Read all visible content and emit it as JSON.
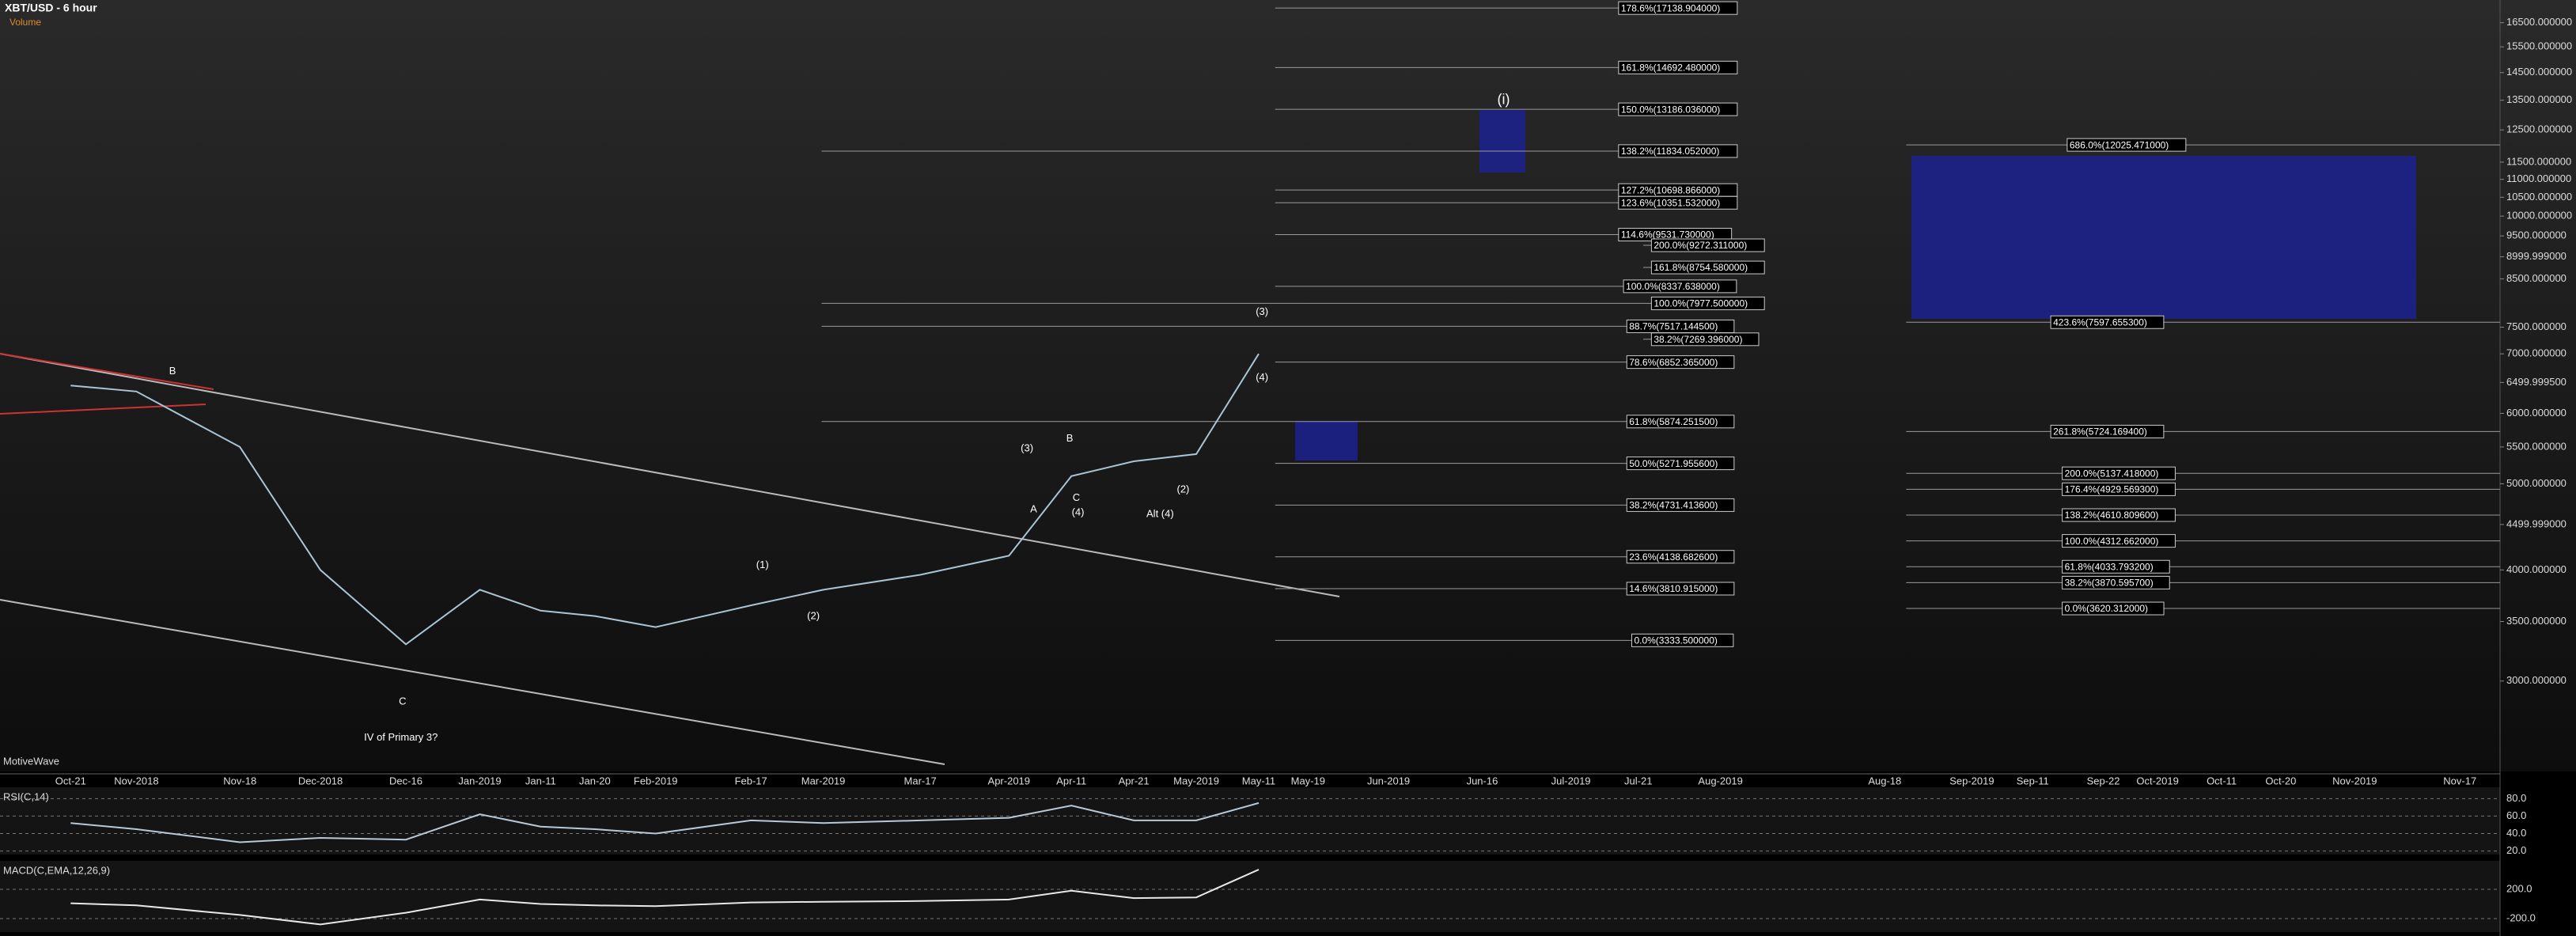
{
  "chart_data": {
    "type": "line",
    "title": "XBT/USD - 6 hour",
    "subtitle": "Volume",
    "watermark": "MotiveWave",
    "log_scale": true,
    "categories": [
      "Oct-21",
      "Nov-2018",
      "Nov-18",
      "Dec-2018",
      "Dec-16",
      "Jan-2019",
      "Jan-11",
      "Jan-20",
      "Feb-2019",
      "Feb-17",
      "Mar-2019",
      "Mar-17",
      "Apr-2019",
      "Apr-11",
      "Apr-21",
      "May-2019",
      "May-11",
      "May-19",
      "Jun-2019",
      "Jun-16",
      "Jul-2019",
      "Jul-21",
      "Aug-2019",
      "Aug-18",
      "Sep-2019",
      "Sep-11",
      "Sep-22",
      "Oct-2019",
      "Oct-11",
      "Oct-20",
      "Nov-2019",
      "Nov-17"
    ],
    "series": [
      {
        "name": "XBT/USD",
        "color": "#a9c4d4",
        "values": [
          6450,
          6350,
          5500,
          4000,
          3300,
          3800,
          3600,
          3550,
          3450,
          3650,
          3800,
          3950,
          4150,
          5100,
          5300,
          5400,
          7000,
          null,
          null,
          null,
          null,
          null,
          null,
          null,
          null,
          null,
          null,
          null,
          null,
          null,
          null,
          null
        ]
      }
    ],
    "ylim": [
      2374,
      17500
    ],
    "yticks": [
      {
        "value": 16500,
        "label": "16500.000000"
      },
      {
        "value": 15500,
        "label": "15500.000000"
      },
      {
        "value": 14500,
        "label": "14500.000000"
      },
      {
        "value": 13500,
        "label": "13500.000000"
      },
      {
        "value": 12500,
        "label": "12500.000000"
      },
      {
        "value": 11500,
        "label": "11500.000000"
      },
      {
        "value": 11000,
        "label": "11000.000000"
      },
      {
        "value": 10500,
        "label": "10500.000000"
      },
      {
        "value": 10000,
        "label": "10000.000000"
      },
      {
        "value": 9500,
        "label": "9500.000000"
      },
      {
        "value": 8999.999,
        "label": "8999.999000"
      },
      {
        "value": 8500,
        "label": "8500.000000"
      },
      {
        "value": 7500,
        "label": "7500.000000"
      },
      {
        "value": 7000,
        "label": "7000.000000"
      },
      {
        "value": 6499.9995,
        "label": "6499.999500"
      },
      {
        "value": 6000,
        "label": "6000.000000"
      },
      {
        "value": 5500,
        "label": "5500.000000"
      },
      {
        "value": 5000,
        "label": "5000.000000"
      },
      {
        "value": 4499.999,
        "label": "4499.999000"
      },
      {
        "value": 4000,
        "label": "4000.000000"
      },
      {
        "value": 3500,
        "label": "3500.000000"
      },
      {
        "value": 3000,
        "label": "3000.000000"
      }
    ],
    "fib_levels": [
      {
        "value": 17138.904,
        "label": "178.6%(17138.904000)"
      },
      {
        "value": 14692.48,
        "label": "161.8%(14692.480000)"
      },
      {
        "value": 13186.036,
        "label": "150.0%(13186.036000)"
      },
      {
        "value": 11834.052,
        "label": "138.2%(11834.052000)"
      },
      {
        "value": 10698.866,
        "label": "127.2%(10698.866000)"
      },
      {
        "value": 10351.532,
        "label": "123.6%(10351.532000)"
      },
      {
        "value": 9531.73,
        "label": "114.6%(9531.730000)"
      },
      {
        "value": 8337.638,
        "label": "100.0%(8337.638000)"
      },
      {
        "value": 7977.5,
        "label": "100.0%(7977.500000)"
      },
      {
        "value": 7517.1445,
        "label": "88.7%(7517.144500)"
      },
      {
        "value": 6852.365,
        "label": "78.6%(6852.365000)"
      },
      {
        "value": 5874.2515,
        "label": "61.8%(5874.251500)"
      },
      {
        "value": 5271.9556,
        "label": "50.0%(5271.955600)"
      },
      {
        "value": 4731.4136,
        "label": "38.2%(4731.413600)"
      },
      {
        "value": 4138.6826,
        "label": "23.6%(4138.682600)"
      },
      {
        "value": 3810.915,
        "label": "14.6%(3810.915000)"
      },
      {
        "value": 3333.5,
        "label": "0.0%(3333.500000)"
      },
      {
        "value": 9272.311,
        "label": "200.0%(9272.311000)"
      },
      {
        "value": 8754.58,
        "label": "161.8%(8754.580000)"
      },
      {
        "value": 7269.396,
        "label": "38.2%(7269.396000)"
      },
      {
        "value": 12025.471,
        "label": "686.0%(12025.471000)"
      },
      {
        "value": 7597.6553,
        "label": "423.6%(7597.655300)"
      },
      {
        "value": 5724.1694,
        "label": "261.8%(5724.169400)"
      },
      {
        "value": 5137.418,
        "label": "200.0%(5137.418000)"
      },
      {
        "value": 4929.5693,
        "label": "176.4%(4929.569300)"
      },
      {
        "value": 4610.8096,
        "label": "138.2%(4610.809600)"
      },
      {
        "value": 4312.662,
        "label": "100.0%(4312.662000)"
      },
      {
        "value": 4033.7932,
        "label": "61.8%(4033.793200)"
      },
      {
        "value": 3870.5957,
        "label": "38.2%(3870.595700)"
      },
      {
        "value": 3620.312,
        "label": "0.0%(3620.312000)"
      }
    ],
    "wave_labels": [
      "B",
      "(i)",
      "A",
      "C",
      "(4)",
      "Alt (4)",
      "(3)",
      "B",
      "(2)",
      "(1)",
      "(3)",
      "(4)",
      "(2)",
      "IV of Primary 3?",
      "C"
    ],
    "rsi": {
      "label": "RSI(C,14)",
      "color": "#b8c8d4",
      "ylim": [
        16,
        93
      ],
      "yticks": [
        {
          "value": 80,
          "label": "80.0"
        },
        {
          "value": 60,
          "label": "60.0"
        },
        {
          "value": 40,
          "label": "40.0"
        },
        {
          "value": 20,
          "label": "20.0"
        }
      ],
      "values": [
        52,
        45,
        30,
        35,
        33,
        62,
        48,
        45,
        40,
        55,
        52,
        55,
        58,
        72,
        55,
        55,
        75,
        null,
        null,
        null,
        null,
        null,
        null,
        null,
        null,
        null,
        null,
        null,
        null,
        null,
        null,
        null
      ]
    },
    "macd": {
      "label": "MACD(C,EMA,12,26,9)",
      "color": "#e8e8e8",
      "ylim": [
        -384,
        589
      ],
      "yticks": [
        {
          "value": 200,
          "label": "200.0"
        },
        {
          "value": -200,
          "label": "-200.0"
        }
      ],
      "values": [
        10,
        -20,
        -150,
        -280,
        -120,
        60,
        0,
        -20,
        -30,
        20,
        30,
        40,
        60,
        180,
        80,
        90,
        469.3,
        null,
        null,
        null,
        null,
        null,
        null,
        null,
        null,
        null,
        null,
        null,
        null,
        null,
        null,
        null
      ]
    }
  }
}
